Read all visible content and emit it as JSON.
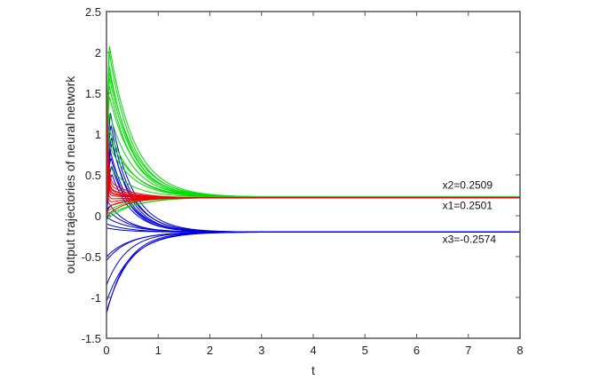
{
  "chart_data": {
    "type": "line",
    "title": "",
    "xlabel": "t",
    "ylabel": "output trajectories of neural network",
    "xlim": [
      0,
      8
    ],
    "ylim": [
      -1.5,
      2.5
    ],
    "xticks": [
      0,
      1,
      2,
      3,
      4,
      5,
      6,
      7,
      8
    ],
    "yticks": [
      -1.5,
      -1,
      -0.5,
      0,
      0.5,
      1,
      1.5,
      2,
      2.5
    ],
    "xtick_labels": [
      "0",
      "1",
      "2",
      "3",
      "4",
      "5",
      "6",
      "7",
      "8"
    ],
    "ytick_labels": [
      "-1.5",
      "-1",
      "-0.5",
      "0",
      "0.5",
      "1",
      "1.5",
      "2",
      "2.5"
    ],
    "grid": false,
    "legend": null,
    "series": [
      {
        "name": "x2",
        "color": "#00dd00",
        "steady_value": 0.2509,
        "plot_level": 0.23,
        "peaks": [
          2.07,
          1.98,
          1.82,
          1.75,
          1.68,
          1.58,
          1.45,
          1.25,
          1.05,
          0.95,
          0.85,
          0.6
        ],
        "rise_to_peak_t": 0.06,
        "decay_rate": 2.1,
        "low_starts": [
          0.0,
          -0.05,
          0.05
        ]
      },
      {
        "name": "x1",
        "color": "#ee0000",
        "steady_value": 0.2501,
        "plot_level": 0.22,
        "initials": [
          2.0,
          1.6,
          1.3,
          1.1,
          0.9,
          0.75,
          0.6,
          0.5,
          0.4,
          0.35,
          0.05,
          -0.05
        ],
        "settle_points": [
          0.45,
          0.4,
          0.35,
          0.33,
          0.3,
          0.28,
          0.25,
          0.2,
          0.15,
          0.1,
          0.0,
          0.1
        ],
        "fast_rate": 40,
        "decay_rate": 2.4
      },
      {
        "name": "x3",
        "color": "#0000dd",
        "steady_value": -0.2574,
        "plot_level": -0.2,
        "peaks": [
          1.25,
          1.1,
          0.95,
          0.88,
          0.78,
          0.7,
          0.6,
          0.5,
          0.12,
          0.03
        ],
        "lows": [
          -0.02,
          -0.1,
          -0.15,
          -0.5,
          -0.55,
          -0.85,
          -1.05,
          -1.18,
          -1.2
        ],
        "decay_rate": 2.3
      }
    ],
    "annotations": [
      {
        "text": "x2=0.2509",
        "x": 6.5,
        "y": 0.33
      },
      {
        "text": "x1=0.2501",
        "x": 6.5,
        "y": 0.08
      },
      {
        "text": "x3=-0.2574",
        "x": 6.5,
        "y": -0.33
      }
    ]
  },
  "axis_color": "#555555"
}
